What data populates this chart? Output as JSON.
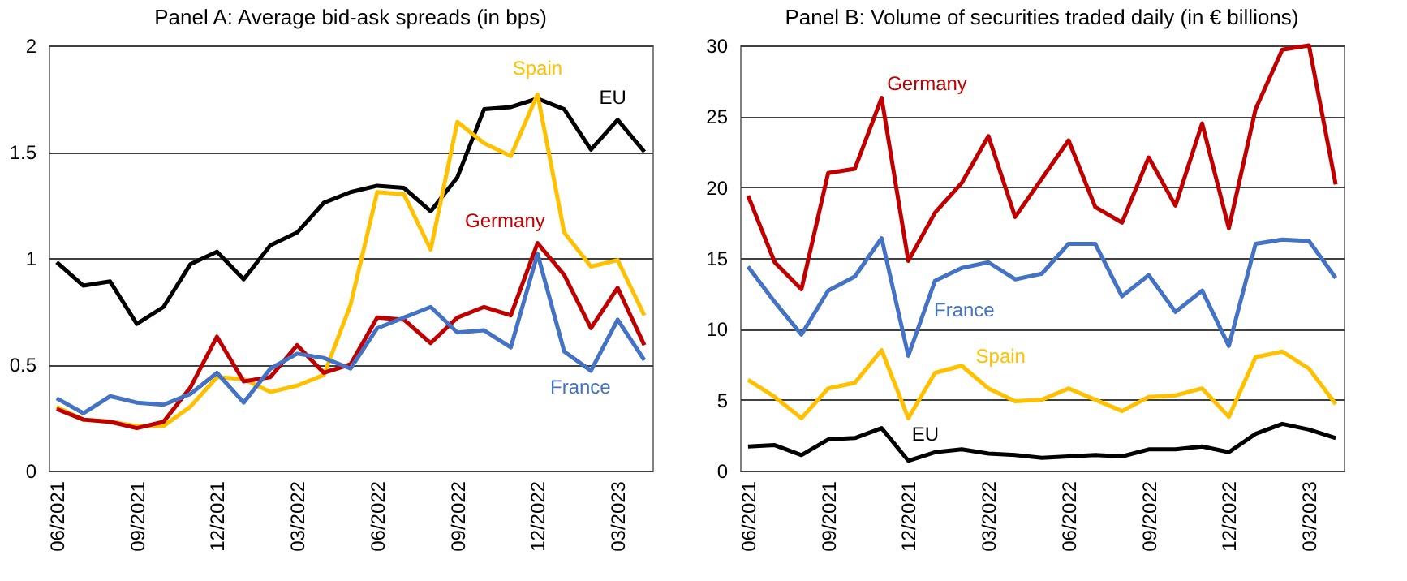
{
  "chart_data": [
    {
      "type": "line",
      "title": "Panel A: Average bid-ask spreads (in bps)",
      "categories": [
        "06/2021",
        null,
        null,
        "09/2021",
        null,
        null,
        "12/2021",
        null,
        null,
        "03/2022",
        null,
        null,
        "06/2022",
        null,
        null,
        "09/2022",
        null,
        null,
        "12/2022",
        null,
        null,
        "03/2023",
        null
      ],
      "ylim": [
        0,
        2
      ],
      "yticks": [
        0,
        0.5,
        1,
        1.5,
        2
      ],
      "grid": "y",
      "series": [
        {
          "name": "EU",
          "color": "#000000",
          "values": [
            0.98,
            0.87,
            0.89,
            0.69,
            0.77,
            0.97,
            1.03,
            0.9,
            1.06,
            1.12,
            1.26,
            1.31,
            1.34,
            1.33,
            1.22,
            1.38,
            1.7,
            1.71,
            1.75,
            1.7,
            1.51,
            1.65,
            1.5
          ]
        },
        {
          "name": "Spain",
          "color": "#ffc000",
          "values": [
            0.3,
            0.24,
            0.23,
            0.21,
            0.21,
            0.3,
            0.44,
            0.43,
            0.37,
            0.4,
            0.45,
            0.78,
            1.31,
            1.3,
            1.04,
            1.64,
            1.54,
            1.48,
            1.77,
            1.12,
            0.96,
            0.99,
            0.73
          ]
        },
        {
          "name": "Germany",
          "color": "#c00000",
          "values": [
            0.29,
            0.24,
            0.23,
            0.2,
            0.23,
            0.39,
            0.63,
            0.42,
            0.44,
            0.59,
            0.46,
            0.5,
            0.72,
            0.71,
            0.6,
            0.72,
            0.77,
            0.73,
            1.07,
            0.92,
            0.67,
            0.86,
            0.59
          ]
        },
        {
          "name": "France",
          "color": "#4472c4",
          "values": [
            0.34,
            0.27,
            0.35,
            0.32,
            0.31,
            0.36,
            0.46,
            0.32,
            0.48,
            0.55,
            0.53,
            0.48,
            0.67,
            0.72,
            0.77,
            0.65,
            0.66,
            0.58,
            1.02,
            0.56,
            0.47,
            0.71,
            0.52
          ]
        }
      ]
    },
    {
      "type": "line",
      "title": "Panel B: Volume of securities traded daily (in € billions)",
      "categories": [
        "06/2021",
        null,
        null,
        "09/2021",
        null,
        null,
        "12/2021",
        null,
        null,
        "03/2022",
        null,
        null,
        "06/2022",
        null,
        null,
        "09/2022",
        null,
        null,
        "12/2022",
        null,
        null,
        "03/2023",
        null
      ],
      "ylim": [
        0,
        30
      ],
      "yticks": [
        0,
        5,
        10,
        15,
        20,
        25,
        30
      ],
      "grid": "y",
      "series": [
        {
          "name": "Germany",
          "color": "#c00000",
          "values": [
            19.4,
            14.7,
            12.8,
            21.0,
            21.3,
            26.3,
            14.8,
            18.2,
            20.3,
            23.6,
            17.9,
            20.6,
            23.3,
            18.6,
            17.5,
            22.1,
            18.7,
            24.5,
            17.1,
            25.5,
            29.7,
            30.0,
            20.2
          ]
        },
        {
          "name": "France",
          "color": "#4472c4",
          "values": [
            14.4,
            11.9,
            9.6,
            12.7,
            13.7,
            16.4,
            8.1,
            13.4,
            14.3,
            14.7,
            13.5,
            13.9,
            16.0,
            16.0,
            12.3,
            13.8,
            11.2,
            12.7,
            8.8,
            16.0,
            16.3,
            16.2,
            13.6
          ]
        },
        {
          "name": "Spain",
          "color": "#ffc000",
          "values": [
            6.4,
            5.2,
            3.7,
            5.8,
            6.2,
            8.5,
            3.7,
            6.9,
            7.4,
            5.8,
            4.9,
            5.0,
            5.8,
            5.0,
            4.2,
            5.2,
            5.3,
            5.8,
            3.8,
            8.0,
            8.4,
            7.2,
            4.7
          ]
        },
        {
          "name": "EU",
          "color": "#000000",
          "values": [
            1.7,
            1.8,
            1.1,
            2.2,
            2.3,
            3.0,
            0.7,
            1.3,
            1.5,
            1.2,
            1.1,
            0.9,
            1.0,
            1.1,
            1.0,
            1.5,
            1.5,
            1.7,
            1.3,
            2.6,
            3.3,
            2.9,
            2.3
          ]
        }
      ]
    }
  ]
}
